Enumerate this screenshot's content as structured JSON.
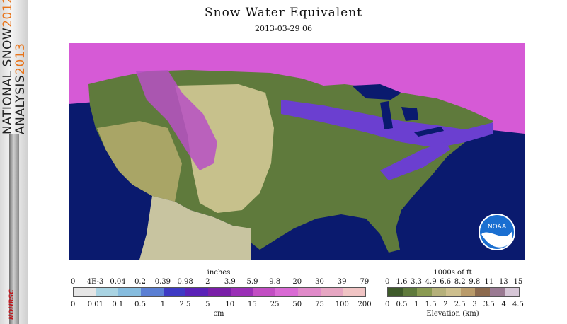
{
  "sidebar": {
    "brand_line1_text": "NATIONAL SNOW",
    "brand_line1_year": "2012",
    "brand_line2_text": "ANALYSIS",
    "brand_line2_year": "2013",
    "logo_text": "NOHRSC"
  },
  "header": {
    "title": "Snow Water Equivalent",
    "timestamp": "2013-03-29 06"
  },
  "map": {
    "agency_logo": "NOAA",
    "colors": {
      "ocean": "#0a1a6e",
      "land_green": "#5f7a3c",
      "plains_tan": "#c7c18c",
      "snow_purple": "#6b3fd0",
      "snow_pink": "#d65ad6",
      "mexico": "#c8c4a0"
    }
  },
  "swe_legend": {
    "top_unit": "inches",
    "bottom_unit": "cm",
    "top_labels": [
      "0",
      "4E-3",
      "0.04",
      "0.2",
      "0.39",
      "0.98",
      "2",
      "3.9",
      "5.9",
      "9.8",
      "20",
      "30",
      "39",
      "79"
    ],
    "bottom_labels": [
      "0",
      "0.01",
      "0.1",
      "0.5",
      "1",
      "2.5",
      "5",
      "10",
      "15",
      "25",
      "50",
      "75",
      "100",
      "200"
    ],
    "colors": [
      "#e6e6e6",
      "#a9d3e2",
      "#86bcde",
      "#5b7fd3",
      "#3e3ac4",
      "#5a22b7",
      "#7a1fa8",
      "#9a2fb6",
      "#c24ec3",
      "#d96ad4",
      "#e08ac9",
      "#e6a6c2",
      "#f0c4c4"
    ]
  },
  "elev_legend": {
    "top_unit": "1000s of ft",
    "bottom_unit": "Elevation (km)",
    "top_labels": [
      "0",
      "1.6",
      "3.3",
      "4.9",
      "6.6",
      "8.2",
      "9.8",
      "11",
      "13",
      "15"
    ],
    "bottom_labels": [
      "0",
      "0.5",
      "1",
      "1.5",
      "2",
      "2.5",
      "3",
      "3.5",
      "4",
      "4.5"
    ],
    "colors": [
      "#3e5a2a",
      "#5f7a3c",
      "#8a9a52",
      "#b5b07a",
      "#cdbf8e",
      "#b99b6a",
      "#8c6a4e",
      "#9a7a92",
      "#d6c6d6"
    ]
  }
}
